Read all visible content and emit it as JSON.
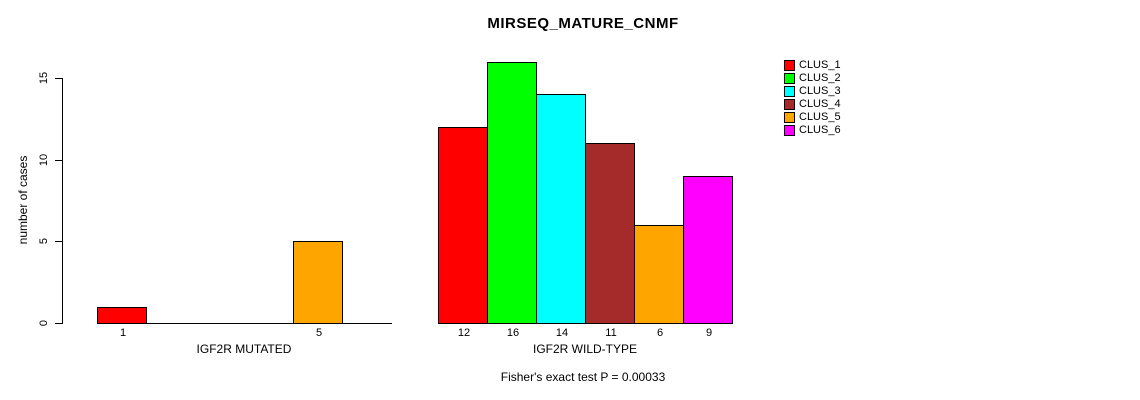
{
  "chart_data": {
    "type": "bar",
    "title": "MIRSEQ_MATURE_CNMF",
    "xlabel": "",
    "ylabel": "number of cases",
    "ylim": [
      0,
      16
    ],
    "yticks": [
      0,
      5,
      10,
      15
    ],
    "grid": false,
    "legend_position": "top-right",
    "annotation": "Fisher's exact test P = 0.00033",
    "series": [
      {
        "name": "CLUS_1",
        "color": "#FF0000"
      },
      {
        "name": "CLUS_2",
        "color": "#00FF00"
      },
      {
        "name": "CLUS_3",
        "color": "#00FFFF"
      },
      {
        "name": "CLUS_4",
        "color": "#A52A2A"
      },
      {
        "name": "CLUS_5",
        "color": "#FFA500"
      },
      {
        "name": "CLUS_6",
        "color": "#FF00FF"
      }
    ],
    "groups": [
      {
        "label": "IGF2R MUTATED",
        "values": [
          1,
          0,
          0,
          0,
          5,
          0
        ],
        "bar_labels": [
          "1",
          "",
          "",
          "",
          "5",
          ""
        ]
      },
      {
        "label": "IGF2R WILD-TYPE",
        "values": [
          12,
          16,
          14,
          11,
          6,
          9
        ],
        "bar_labels": [
          "12",
          "16",
          "14",
          "11",
          "6",
          "9"
        ]
      }
    ]
  }
}
